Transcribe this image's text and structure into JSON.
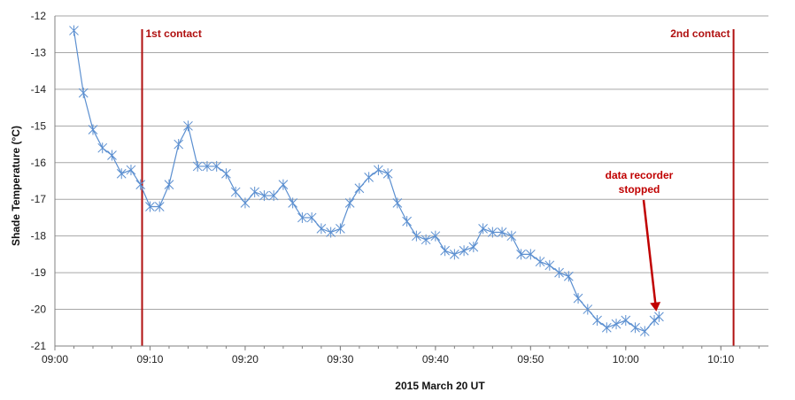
{
  "chart_data": {
    "type": "line",
    "xlabel": "2015  March 20   UT",
    "ylabel": "Shade Temperature (°C)",
    "xlim": [
      "09:00",
      "10:15"
    ],
    "ylim": [
      -21,
      -12
    ],
    "grid": "horizontal",
    "x_ticks": [
      "09:00",
      "09:10",
      "09:20",
      "09:30",
      "09:40",
      "09:50",
      "10:00",
      "10:10"
    ],
    "y_ticks": [
      -12,
      -13,
      -14,
      -15,
      -16,
      -17,
      -18,
      -19,
      -20,
      -21
    ],
    "series": [
      {
        "marker": "asterisk",
        "color": "#5b8fd0",
        "x": [
          "09:02",
          "09:03",
          "09:04",
          "09:05",
          "09:06",
          "09:07",
          "09:08",
          "09:09",
          "09:10",
          "09:11",
          "09:12",
          "09:13",
          "09:14",
          "09:15",
          "09:16",
          "09:17",
          "09:18",
          "09:19",
          "09:20",
          "09:21",
          "09:22",
          "09:23",
          "09:24",
          "09:25",
          "09:26",
          "09:27",
          "09:28",
          "09:29",
          "09:30",
          "09:31",
          "09:32",
          "09:33",
          "09:34",
          "09:35",
          "09:36",
          "09:37",
          "09:38",
          "09:39",
          "09:40",
          "09:41",
          "09:42",
          "09:43",
          "09:44",
          "09:45",
          "09:46",
          "09:47",
          "09:48",
          "09:49",
          "09:50",
          "09:51",
          "09:52",
          "09:53",
          "09:54",
          "09:55",
          "09:56",
          "09:57",
          "09:58",
          "09:59",
          "10:00",
          "10:01",
          "10:02",
          "10:03",
          "10:03:30"
        ],
        "values": [
          -12.4,
          -14.1,
          -15.1,
          -15.6,
          -15.8,
          -16.3,
          -16.2,
          -16.6,
          -17.2,
          -17.2,
          -16.6,
          -15.5,
          -15.0,
          -16.1,
          -16.1,
          -16.1,
          -16.3,
          -16.8,
          -17.1,
          -16.8,
          -16.9,
          -16.9,
          -16.6,
          -17.1,
          -17.5,
          -17.5,
          -17.8,
          -17.9,
          -17.8,
          -17.1,
          -16.7,
          -16.4,
          -16.2,
          -16.3,
          -17.1,
          -17.6,
          -18.0,
          -18.1,
          -18.0,
          -18.4,
          -18.5,
          -18.4,
          -18.3,
          -17.8,
          -17.9,
          -17.9,
          -18.0,
          -18.5,
          -18.5,
          -18.7,
          -18.8,
          -19.0,
          -19.1,
          -19.7,
          -20.0,
          -20.3,
          -20.5,
          -20.4,
          -20.3,
          -20.5,
          -20.6,
          -20.3,
          -20.2
        ]
      }
    ],
    "annotations": [
      {
        "text": "1st contact",
        "x": "09:09:10",
        "color": "#b01010"
      },
      {
        "text": "2nd contact",
        "x": "10:11:20",
        "color": "#b01010"
      },
      {
        "text": "data recorder stopped",
        "lines": [
          "data recorder",
          "stopped"
        ],
        "arrow_to": {
          "x": "10:03:30",
          "y": -20.2
        },
        "color": "#c00000"
      }
    ]
  }
}
